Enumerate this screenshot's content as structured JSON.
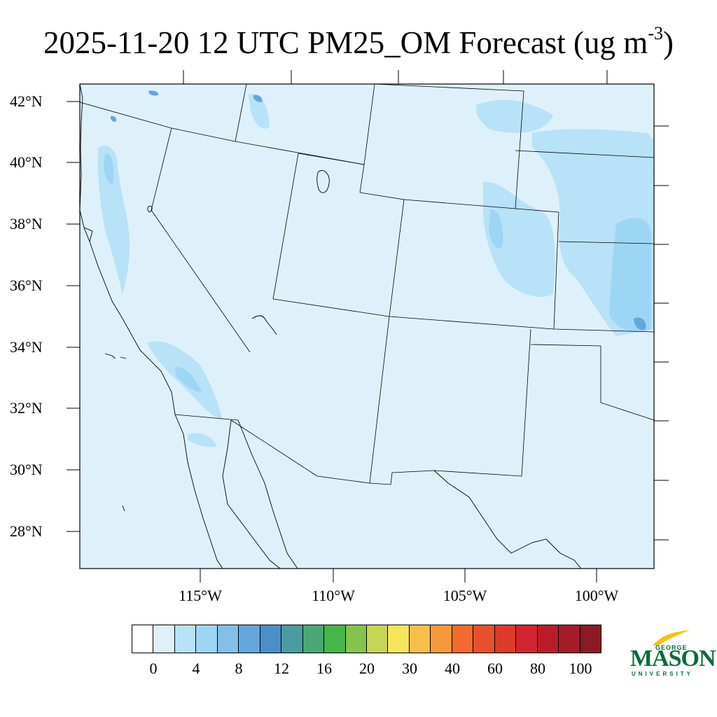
{
  "title": {
    "main": "2025-11-20 12 UTC PM25_OM Forecast (ug m",
    "superscript": "-3",
    "close": ")"
  },
  "map": {
    "region": "Southwestern United States and northern Mexico",
    "background_value_color": "#def1fb",
    "latitude_labels": [
      "42°N",
      "40°N",
      "38°N",
      "36°N",
      "34°N",
      "32°N",
      "30°N",
      "28°N"
    ],
    "longitude_labels": [
      "115°W",
      "110°W",
      "105°W",
      "100°W"
    ],
    "features": [
      {
        "name": "Lake Tahoe / Sierra Nevada band",
        "level": "light-blue"
      },
      {
        "name": "Central Valley California",
        "level": "light-blue"
      },
      {
        "name": "Southern California coastal range",
        "level": "light-blue"
      },
      {
        "name": "Colorado Front Range",
        "level": "medium-blue"
      },
      {
        "name": "Kansas / Oklahoma plains",
        "level": "medium-blue"
      }
    ]
  },
  "colorbar": {
    "colors": [
      "#ffffff",
      "#def1fb",
      "#b8e2f7",
      "#9dd6f5",
      "#83c0e8",
      "#64a6dc",
      "#4a8fcc",
      "#4a9ca0",
      "#4aa876",
      "#48b54a",
      "#84c44c",
      "#c6d654",
      "#f6e45a",
      "#f8bf4a",
      "#f6993c",
      "#f36a2d",
      "#e84f2d",
      "#dd3a2b",
      "#d22330",
      "#ba1c2a",
      "#a51b28",
      "#8d1a22"
    ],
    "labels": [
      "0",
      "4",
      "8",
      "12",
      "16",
      "20",
      "30",
      "40",
      "60",
      "80",
      "100"
    ]
  },
  "logo": {
    "line1": "GEORGE",
    "line2": "MASON",
    "line3": "UNIVERSITY",
    "color": "#0b6b3a"
  }
}
